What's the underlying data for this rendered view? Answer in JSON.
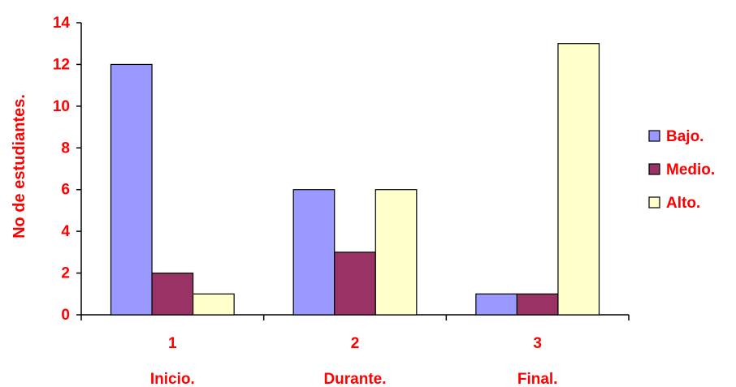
{
  "chart_data": {
    "type": "bar",
    "categories": [
      "1",
      "2",
      "3"
    ],
    "category_sublabels": [
      "Inicio.",
      "Durante.",
      "Final."
    ],
    "series": [
      {
        "name": "Bajo.",
        "values": [
          12,
          6,
          1
        ],
        "color": "#9999FF"
      },
      {
        "name": "Medio.",
        "values": [
          2,
          3,
          1
        ],
        "color": "#993366"
      },
      {
        "name": "Alto.",
        "values": [
          1,
          6,
          13
        ],
        "color": "#FFFFCC"
      }
    ],
    "title": "",
    "xlabel": "",
    "ylabel": "No de estudiantes.",
    "ylim": [
      0,
      14
    ],
    "yticks": [
      0,
      2,
      4,
      6,
      8,
      10,
      12,
      14
    ],
    "grid": false,
    "legend_position": "right",
    "text_color": "#FF0000"
  }
}
